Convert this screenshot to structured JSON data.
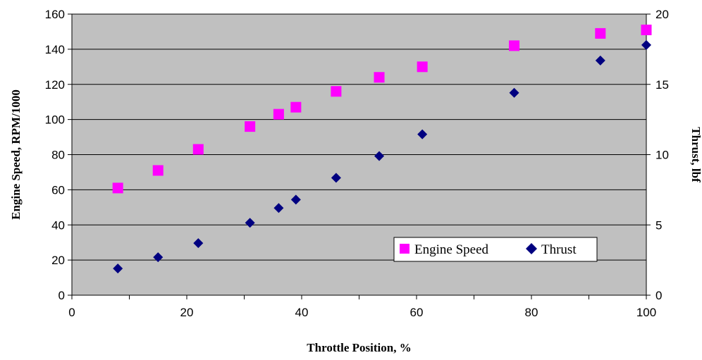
{
  "chart_data": {
    "type": "scatter",
    "title": "",
    "xlabel": "Throttle Position, %",
    "ylabel": "Engine Speed, RPM/1000",
    "y2label": "Thrust, lbf",
    "xlim": [
      0,
      100
    ],
    "ylim": [
      0,
      160
    ],
    "y2lim": [
      0,
      20
    ],
    "x_ticks": [
      "0",
      "20",
      "40",
      "60",
      "80",
      "100"
    ],
    "y_ticks": [
      "0",
      "20",
      "40",
      "60",
      "80",
      "100",
      "120",
      "140",
      "160"
    ],
    "y2_ticks": [
      "0",
      "5",
      "10",
      "15",
      "20"
    ],
    "grid": "horizontal",
    "plot_background": "#c0c0c0",
    "legend_position": "lower-right",
    "series": [
      {
        "name": "Engine Speed",
        "axis": "left",
        "marker": "square",
        "color": "#ff00ff",
        "x": [
          8,
          15,
          22,
          31,
          36,
          39,
          46,
          53.5,
          61,
          77,
          92,
          100
        ],
        "y": [
          61,
          71,
          83,
          96,
          103,
          107,
          116,
          124,
          130,
          142,
          149,
          151
        ]
      },
      {
        "name": "Thrust",
        "axis": "right",
        "marker": "diamond",
        "color": "#000080",
        "x": [
          8,
          15,
          22,
          31,
          36,
          39,
          46,
          53.5,
          61,
          77,
          92,
          100
        ],
        "y": [
          1.9,
          2.7,
          3.7,
          5.15,
          6.2,
          6.8,
          8.35,
          9.9,
          11.45,
          14.4,
          16.7,
          17.8
        ]
      }
    ]
  }
}
